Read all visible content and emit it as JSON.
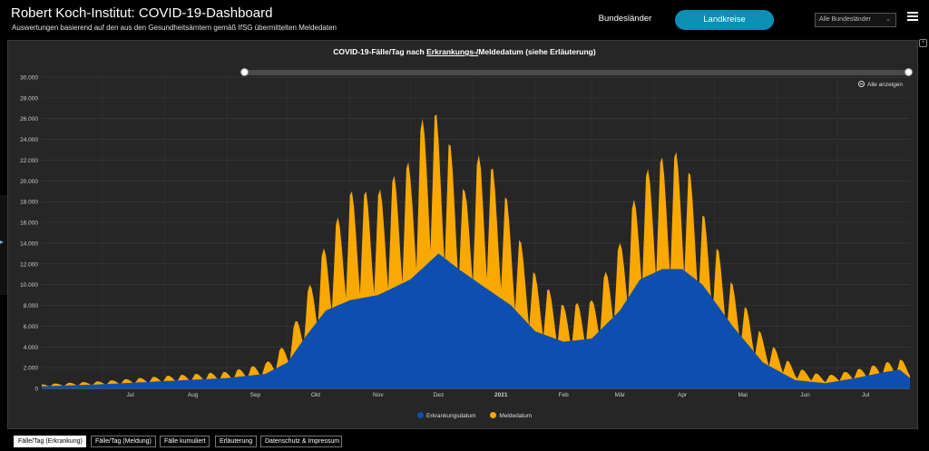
{
  "header": {
    "title": "Robert Koch-Institut: COVID-19-Dashboard",
    "subtitle": "Auswertungen basierend auf den aus den Gesundheitsämtern gemäß IfSG übermittelten Meldedaten",
    "nav": {
      "states": "Bundesländer",
      "districts": "Landkreise"
    },
    "state_select": "Alle Bundesländer"
  },
  "chart": {
    "title_pre": "COVID-19-Fälle/Tag nach ",
    "title_link": "Erkrankungs-/",
    "title_post": "Meldedatum (siehe Erläuterung)",
    "show_all": "Alle anzeigen"
  },
  "tabs": [
    {
      "label": "Fälle/Tag (Erkrankung)",
      "active": true
    },
    {
      "label": "Fälle/Tag (Meldung)",
      "active": false
    },
    {
      "label": "Fälle kumuliert",
      "active": false
    },
    {
      "label": "Erläuterung",
      "active": false
    },
    {
      "label": "Datenschutz & Impressum",
      "active": false
    }
  ],
  "colors": {
    "erkrankung": "#0d4faf",
    "melde": "#f9a800",
    "accent": "#0b8fb5"
  },
  "chart_data": {
    "type": "area",
    "x_range": [
      "2020-06-01",
      "2021-08-06"
    ],
    "ylim": [
      0,
      30000
    ],
    "yticks": [
      0,
      2000,
      4000,
      6000,
      8000,
      10000,
      12000,
      14000,
      16000,
      18000,
      20000,
      22000,
      24000,
      26000,
      28000,
      30000
    ],
    "ytick_labels": [
      "0",
      "2.000",
      "4.000",
      "6.000",
      "8.000",
      "10.000",
      "12.000",
      "14.000",
      "16.000",
      "18.000",
      "20.000",
      "22.000",
      "24.000",
      "26.000",
      "28.000",
      "30.000"
    ],
    "xticks": [
      {
        "date": "2020-07-15",
        "label": "Jul"
      },
      {
        "date": "2020-08-15",
        "label": "Aug"
      },
      {
        "date": "2020-09-15",
        "label": "Sep"
      },
      {
        "date": "2020-10-15",
        "label": "Okt"
      },
      {
        "date": "2020-11-15",
        "label": "Nov"
      },
      {
        "date": "2020-12-15",
        "label": "Dez"
      },
      {
        "date": "2021-01-15",
        "label": "2021"
      },
      {
        "date": "2021-02-15",
        "label": "Feb"
      },
      {
        "date": "2021-03-15",
        "label": "Mär"
      },
      {
        "date": "2021-04-15",
        "label": "Apr"
      },
      {
        "date": "2021-05-15",
        "label": "Mai"
      },
      {
        "date": "2021-06-15",
        "label": "Jun"
      },
      {
        "date": "2021-07-15",
        "label": "Jul"
      }
    ],
    "grid": true,
    "legend_position": "bottom",
    "series": [
      {
        "name": "Erkrankungsdatum",
        "color": "#0d4faf",
        "x": [
          "2020-06-01",
          "2020-07-01",
          "2020-08-01",
          "2020-09-01",
          "2020-09-20",
          "2020-10-01",
          "2020-10-10",
          "2020-10-20",
          "2020-11-01",
          "2020-11-15",
          "2020-12-01",
          "2020-12-15",
          "2020-12-25",
          "2021-01-05",
          "2021-01-20",
          "2021-02-01",
          "2021-02-15",
          "2021-03-01",
          "2021-03-15",
          "2021-03-25",
          "2021-04-05",
          "2021-04-15",
          "2021-04-25",
          "2021-05-10",
          "2021-05-25",
          "2021-06-10",
          "2021-06-25",
          "2021-07-10",
          "2021-07-25",
          "2021-08-01",
          "2021-08-06"
        ],
        "y": [
          200,
          400,
          700,
          1000,
          1400,
          2500,
          5000,
          7500,
          8500,
          9000,
          10500,
          13000,
          11500,
          10000,
          8000,
          5500,
          4500,
          4800,
          7500,
          10500,
          11500,
          11500,
          10000,
          6000,
          2500,
          800,
          500,
          1000,
          1600,
          1800,
          1000
        ]
      },
      {
        "name": "Meldedatum",
        "color": "#f9a800",
        "x": [
          "2020-06-01",
          "2020-07-01",
          "2020-08-01",
          "2020-09-01",
          "2020-09-20",
          "2020-10-01",
          "2020-10-10",
          "2020-10-20",
          "2020-11-01",
          "2020-11-15",
          "2020-12-01",
          "2020-12-10",
          "2020-12-20",
          "2020-12-28",
          "2021-01-05",
          "2021-01-15",
          "2021-01-25",
          "2021-02-01",
          "2021-02-15",
          "2021-03-01",
          "2021-03-15",
          "2021-03-25",
          "2021-04-01",
          "2021-04-15",
          "2021-04-25",
          "2021-05-10",
          "2021-05-25",
          "2021-06-10",
          "2021-06-25",
          "2021-07-10",
          "2021-07-25",
          "2021-08-01",
          "2021-08-06"
        ],
        "y": [
          400,
          700,
          1200,
          1600,
          2400,
          4500,
          9000,
          14000,
          19000,
          19000,
          22000,
          28000,
          24000,
          19000,
          23000,
          20000,
          14000,
          11000,
          8000,
          8500,
          14000,
          20000,
          22000,
          23000,
          17000,
          10000,
          5000,
          2000,
          1200,
          1800,
          2500,
          2800,
          2500
        ]
      }
    ]
  }
}
